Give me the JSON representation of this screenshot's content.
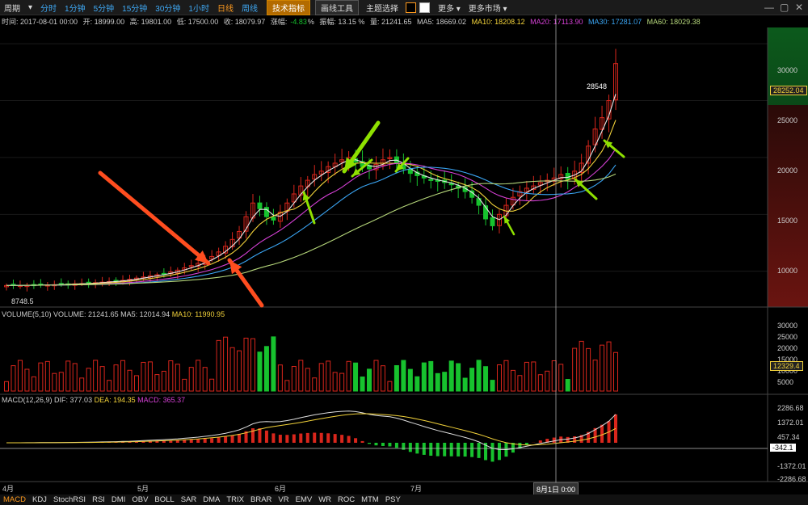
{
  "toolbar": {
    "period_label": "周期",
    "periods": [
      "分时",
      "1分钟",
      "5分钟",
      "15分钟",
      "30分钟",
      "1小时",
      "日线",
      "周线"
    ],
    "tech_label": "技术指标",
    "draw_label": "画线工具",
    "theme_label": "主题选择",
    "more_label": "更多",
    "more_markets_label": "更多市场"
  },
  "info": {
    "time": "时间: 2017-08-01 00:00",
    "open": "开: 18999.00",
    "high": "高: 19801.00",
    "low": "低: 17500.00",
    "close": "收: 18079.97",
    "change_label": "涨幅:",
    "change_value": "-4.83",
    "change_unit": "%",
    "amplitude": "振幅: 13.15 %",
    "volume": "量: 21241.65",
    "ma5": "MA5: 18669.02",
    "ma10": "MA10: 18208.12",
    "ma20": "MA20: 17113.90",
    "ma30": "MA30: 17281.07",
    "ma60": "MA60: 18029.38"
  },
  "price_axis": [
    "30000",
    "25000",
    "20000",
    "15000",
    "10000"
  ],
  "price_tag": "28252.04",
  "high_label": "28548",
  "low_label": "8748.5",
  "volume_panel": {
    "title": "VOLUME(5,10)",
    "volume": "VOLUME: 21241.65",
    "ma5": "MA5: 12014.94",
    "ma10": "MA10: 11990.95",
    "axis": [
      "30000",
      "25000",
      "20000",
      "15000",
      "10000",
      "5000"
    ],
    "tag": "12329.4"
  },
  "macd_panel": {
    "title": "MACD(12,26,9)",
    "dif": "DIF: 377.03",
    "dea": "DEA: 194.35",
    "macd": "MACD: 365.37",
    "axis": [
      "2286.68",
      "1372.01",
      "457.34",
      "-1372.01",
      "-2286.68"
    ],
    "tag": "-342.1"
  },
  "time_axis": [
    "4月",
    "5月",
    "6月",
    "7月"
  ],
  "cursor_time": "8月1日  0:00",
  "bottom_tabs": [
    "MACD",
    "KDJ",
    "StochRSI",
    "RSI",
    "DMI",
    "OBV",
    "BOLL",
    "SAR",
    "DMA",
    "TRIX",
    "BRAR",
    "VR",
    "EMV",
    "WR",
    "ROC",
    "MTM",
    "PSY"
  ],
  "colors": {
    "up": "#d9261c",
    "down": "#17c22e",
    "ma5": "#e8e8e8",
    "ma10": "#f2d23a",
    "ma20": "#d640d6",
    "ma30": "#3aa4f2",
    "ma60": "#b5d67a",
    "arrow_red": "#ff4d1f",
    "arrow_green": "#8ee000"
  },
  "chart_data": {
    "type": "candlestick",
    "title": "",
    "y_range": [
      7000,
      31000
    ],
    "closes": [
      8748,
      8760,
      8770,
      8780,
      8790,
      8800,
      8810,
      8830,
      8850,
      8880,
      8900,
      8920,
      8950,
      9000,
      9050,
      9100,
      9150,
      9200,
      9300,
      9400,
      9500,
      9600,
      9700,
      9800,
      9950,
      10100,
      10300,
      10500,
      10700,
      11000,
      11300,
      11700,
      12200,
      12800,
      13500,
      14800,
      16000,
      15500,
      14800,
      14500,
      15200,
      16000,
      16800,
      17500,
      18000,
      18500,
      18800,
      19200,
      19500,
      19800,
      20000,
      19600,
      19200,
      19000,
      19400,
      19800,
      20000,
      19500,
      19000,
      18600,
      18400,
      18200,
      18000,
      17900,
      17800,
      17600,
      17300,
      17000,
      16500,
      15800,
      14600,
      14000,
      15000,
      15800,
      16500,
      17000,
      17300,
      17500,
      17800,
      18000,
      18200,
      18500,
      18079,
      18800,
      19500,
      21000,
      22500,
      23500,
      25000,
      28252
    ]
  }
}
